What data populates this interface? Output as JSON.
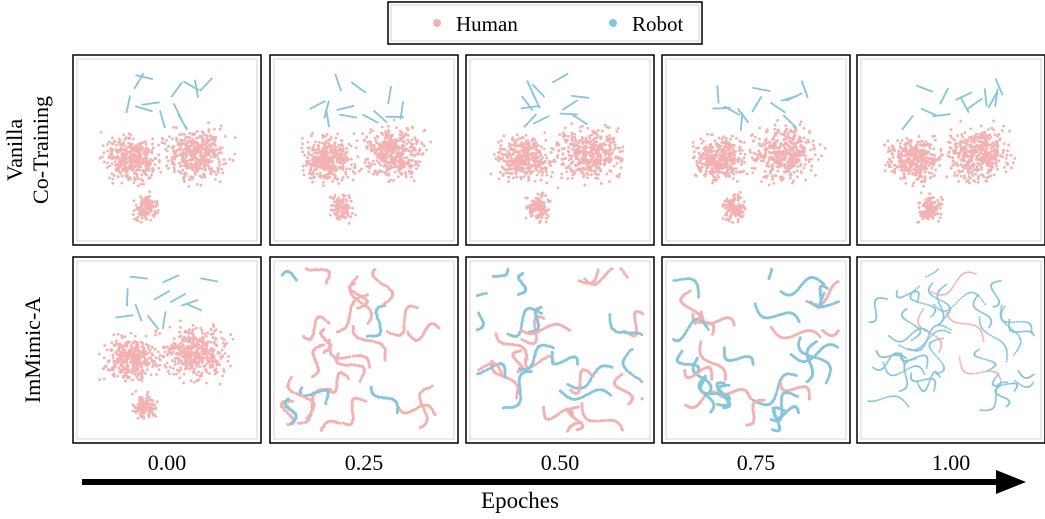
{
  "legend": [
    {
      "label": "Human",
      "color": "#f4b1b1"
    },
    {
      "label": "Robot",
      "color": "#86c5dc"
    }
  ],
  "rows": [
    {
      "lines": [
        "Vanilla",
        "Co-Training"
      ]
    },
    {
      "lines": [
        "ImMimic-A"
      ]
    }
  ],
  "columns": [
    "0.00",
    "0.25",
    "0.50",
    "0.75",
    "1.00"
  ],
  "x_label": "Epoches"
}
